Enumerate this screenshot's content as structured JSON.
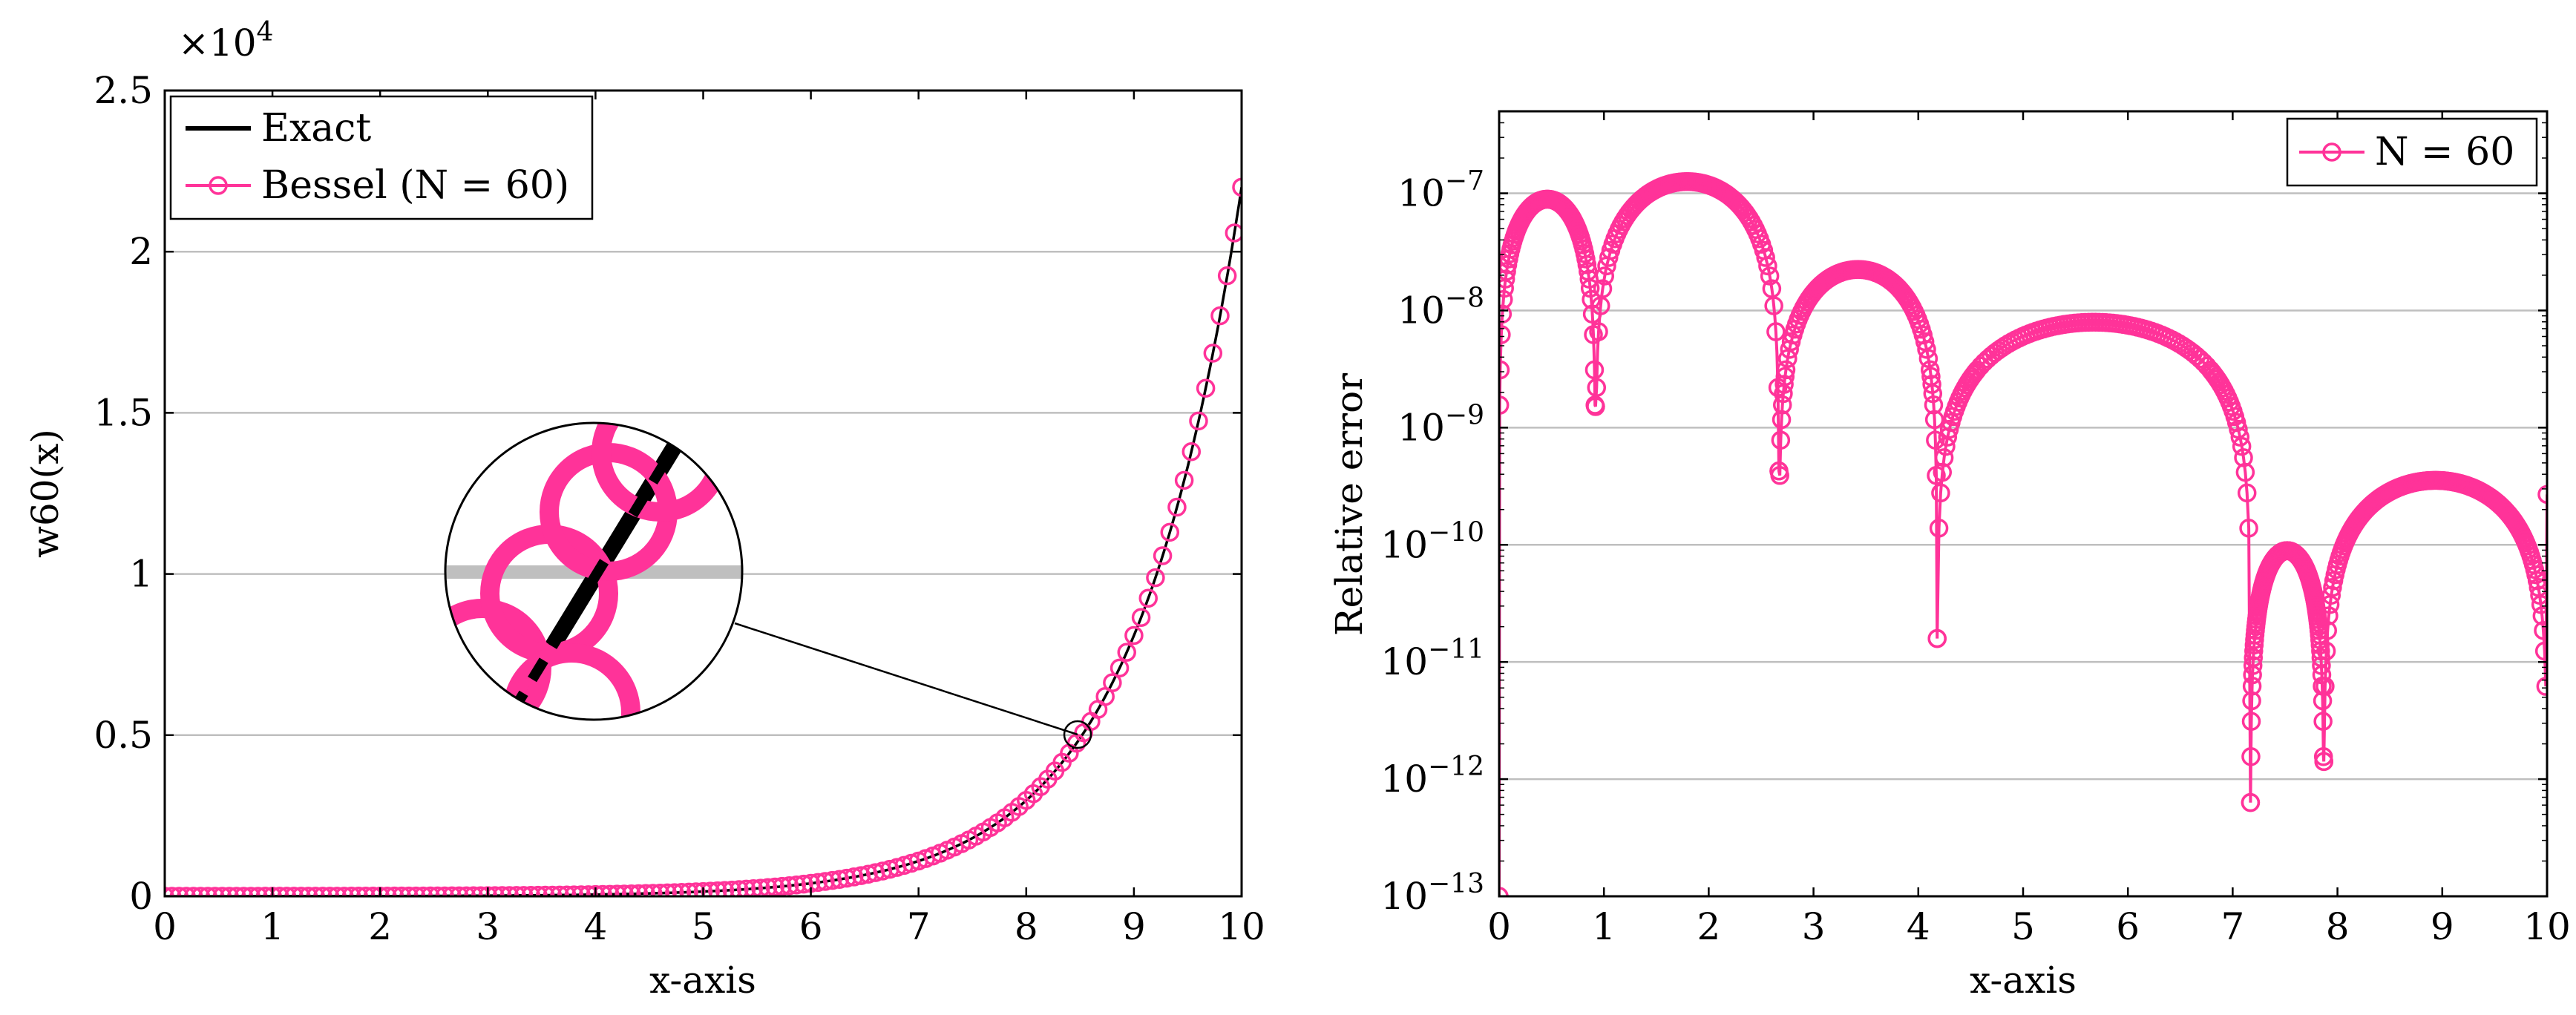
{
  "chart_data": [
    {
      "type": "line",
      "ylabel": "w60(x)",
      "xlabel": "x-axis",
      "scale_factor_label": "×10",
      "scale_factor_exp": "4",
      "xlim": [
        0,
        10
      ],
      "ylim": [
        0,
        2.5
      ],
      "xticks": [
        "0",
        "1",
        "2",
        "3",
        "4",
        "5",
        "6",
        "7",
        "8",
        "9",
        "10"
      ],
      "yticks": [
        "0",
        "0.5",
        "1",
        "1.5",
        "2",
        "2.5"
      ],
      "grid": "horizontal",
      "legend_position": "top-left",
      "legend": [
        {
          "label": "Exact",
          "color": "#000000",
          "marker": "none"
        },
        {
          "label": "Bessel (N = 60)",
          "color": "#ff3399",
          "marker": "circle"
        }
      ],
      "series": [
        {
          "name": "Exact",
          "function": "exp(x) / 1",
          "x_range": [
            0,
            10
          ],
          "note_units": "×10^4"
        },
        {
          "name": "Bessel (N = 60)",
          "samples": 151,
          "x_range": [
            0,
            10
          ]
        }
      ],
      "inset_zoom_at": {
        "x": 8.5,
        "y": 0.5
      }
    },
    {
      "type": "line",
      "ylabel": "Relative error",
      "xlabel": "x-axis",
      "xlim": [
        0,
        10
      ],
      "ylim_log10": [
        -13,
        -6.3
      ],
      "yscale": "log",
      "xticks": [
        "0",
        "1",
        "2",
        "3",
        "4",
        "5",
        "6",
        "7",
        "8",
        "9",
        "10"
      ],
      "yticks": [
        "10^-7",
        "10^-8",
        "10^-9",
        "10^-10",
        "10^-11",
        "10^-12",
        "10^-13"
      ],
      "grid": "horizontal",
      "legend_position": "top-right",
      "legend": [
        {
          "label": "N = 60",
          "color": "#ff3399",
          "marker": "circle"
        }
      ],
      "series": [
        {
          "name": "N = 60",
          "lobes": [
            {
              "x0": 0.0,
              "x1": 0.92,
              "peak_log10": -7.05
            },
            {
              "x0": 0.92,
              "x1": 2.67,
              "peak_log10": -6.9
            },
            {
              "x0": 2.67,
              "x1": 4.18,
              "peak_log10": -7.65
            },
            {
              "x0": 4.18,
              "x1": 7.17,
              "peak_log10": -8.1
            },
            {
              "x0": 7.17,
              "x1": 7.87,
              "peak_log10": -10.05
            },
            {
              "x0": 7.87,
              "x1": 10.0,
              "peak_log10": -9.45
            }
          ],
          "dips": [
            {
              "x": 0.0,
              "log10": -13.0
            },
            {
              "x": 0.92,
              "log10": -8.82
            },
            {
              "x": 2.67,
              "log10": -9.37
            },
            {
              "x": 4.18,
              "log10": -10.8
            },
            {
              "x": 7.17,
              "log10": -12.2
            },
            {
              "x": 7.87,
              "log10": -11.85
            }
          ]
        }
      ]
    }
  ]
}
